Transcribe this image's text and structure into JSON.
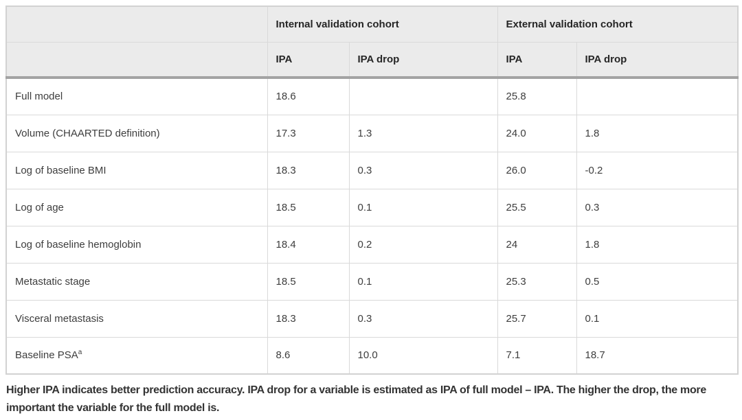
{
  "table": {
    "group_headers": {
      "internal": "Internal validation cohort",
      "external": "External validation cohort"
    },
    "sub_headers": {
      "ipa": "IPA",
      "ipa_drop": "IPA drop"
    },
    "rows": [
      {
        "label": "Full model",
        "sup": "",
        "internal_ipa": "18.6",
        "internal_ipa_drop": "",
        "external_ipa": "25.8",
        "external_ipa_drop": ""
      },
      {
        "label": "Volume (CHAARTED definition)",
        "sup": "",
        "internal_ipa": "17.3",
        "internal_ipa_drop": "1.3",
        "external_ipa": "24.0",
        "external_ipa_drop": "1.8"
      },
      {
        "label": "Log of baseline BMI",
        "sup": "",
        "internal_ipa": "18.3",
        "internal_ipa_drop": "0.3",
        "external_ipa": "26.0",
        "external_ipa_drop": "-0.2"
      },
      {
        "label": "Log of age",
        "sup": "",
        "internal_ipa": "18.5",
        "internal_ipa_drop": "0.1",
        "external_ipa": "25.5",
        "external_ipa_drop": "0.3"
      },
      {
        "label": "Log of baseline hemoglobin",
        "sup": "",
        "internal_ipa": "18.4",
        "internal_ipa_drop": "0.2",
        "external_ipa": "24",
        "external_ipa_drop": "1.8"
      },
      {
        "label": "Metastatic stage",
        "sup": "",
        "internal_ipa": "18.5",
        "internal_ipa_drop": "0.1",
        "external_ipa": "25.3",
        "external_ipa_drop": "0.5"
      },
      {
        "label": "Visceral metastasis",
        "sup": "",
        "internal_ipa": "18.3",
        "internal_ipa_drop": "0.3",
        "external_ipa": "25.7",
        "external_ipa_drop": "0.1"
      },
      {
        "label": "Baseline PSA",
        "sup": "a",
        "internal_ipa": "8.6",
        "internal_ipa_drop": "10.0",
        "external_ipa": "7.1",
        "external_ipa_drop": "18.7"
      }
    ]
  },
  "footnote": "Higher IPA indicates better prediction accuracy. IPA drop for a variable is estimated as IPA of full model – IPA. The higher the drop, the more important the variable for the full model is."
}
